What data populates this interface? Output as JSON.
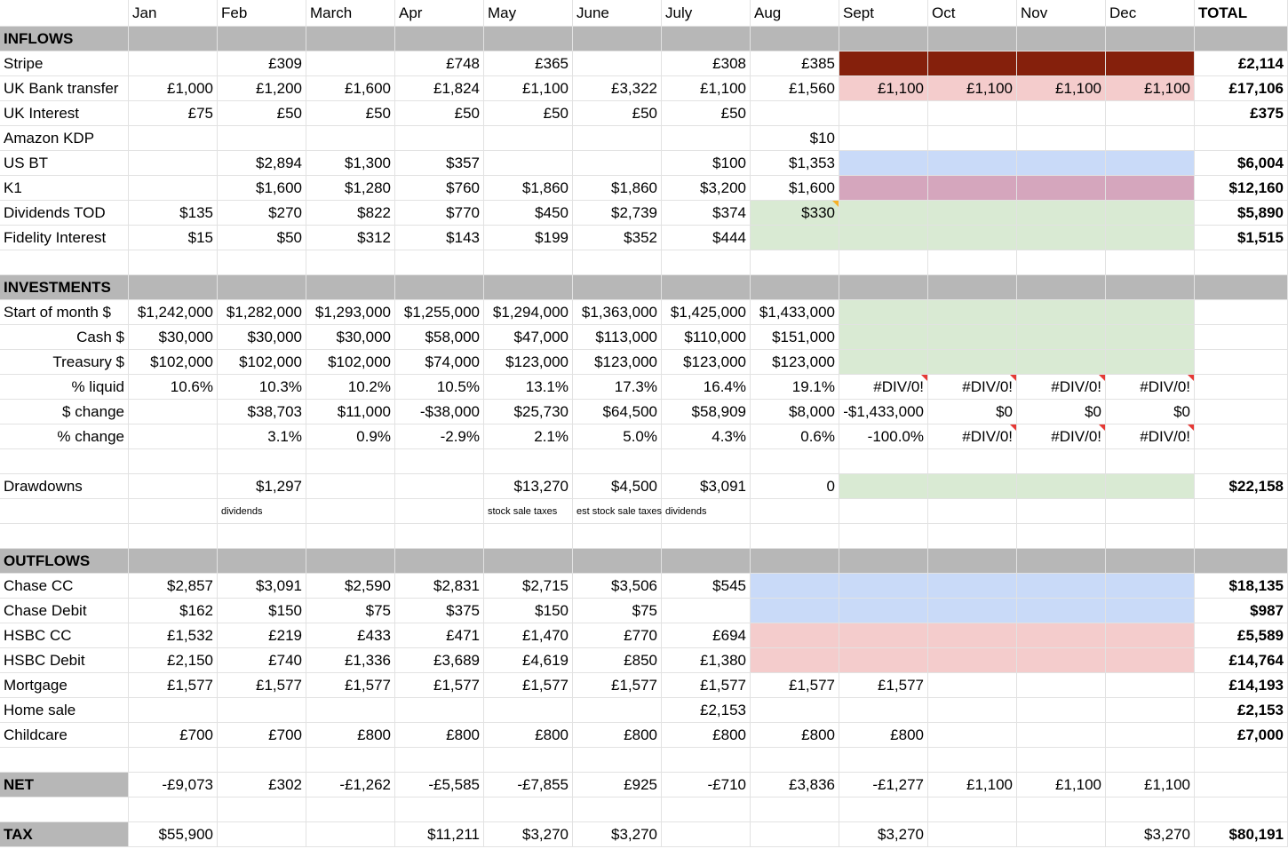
{
  "header": [
    null,
    "Jan",
    "Feb",
    "March",
    "Apr",
    "May",
    "June",
    "July",
    "Aug",
    "Sept",
    "Oct",
    "Nov",
    "Dec",
    "TOTAL"
  ],
  "rows": [
    [
      "INFLOWS",
      null,
      null,
      null,
      null,
      null,
      null,
      null,
      null,
      null,
      null,
      null,
      null,
      null
    ],
    [
      "Stripe",
      null,
      "£309",
      null,
      "£748",
      "£365",
      null,
      "£308",
      "£385",
      null,
      null,
      null,
      null,
      "£2,114"
    ],
    [
      "UK Bank transfer",
      "£1,000",
      "£1,200",
      "£1,600",
      "£1,824",
      "£1,100",
      "£3,322",
      "£1,100",
      "£1,560",
      "£1,100",
      "£1,100",
      "£1,100",
      "£1,100",
      "£17,106"
    ],
    [
      "UK Interest",
      "£75",
      "£50",
      "£50",
      "£50",
      "£50",
      "£50",
      "£50",
      null,
      null,
      null,
      null,
      null,
      "£375"
    ],
    [
      "Amazon KDP",
      null,
      null,
      null,
      null,
      null,
      null,
      null,
      "$10",
      null,
      null,
      null,
      null,
      null
    ],
    [
      "US BT",
      null,
      "$2,894",
      "$1,300",
      "$357",
      null,
      null,
      "$100",
      "$1,353",
      null,
      null,
      null,
      null,
      "$6,004"
    ],
    [
      "K1",
      null,
      "$1,600",
      "$1,280",
      "$760",
      "$1,860",
      "$1,860",
      "$3,200",
      "$1,600",
      null,
      null,
      null,
      null,
      "$12,160"
    ],
    [
      "Dividends TOD",
      "$135",
      "$270",
      "$822",
      "$770",
      "$450",
      "$2,739",
      "$374",
      "$330",
      null,
      null,
      null,
      null,
      "$5,890"
    ],
    [
      "Fidelity Interest",
      "$15",
      "$50",
      "$312",
      "$143",
      "$199",
      "$352",
      "$444",
      null,
      null,
      null,
      null,
      null,
      "$1,515"
    ],
    null,
    [
      "INVESTMENTS",
      null,
      null,
      null,
      null,
      null,
      null,
      null,
      null,
      null,
      null,
      null,
      null,
      null
    ],
    [
      "Start of month $",
      "$1,242,000",
      "$1,282,000",
      "$1,293,000",
      "$1,255,000",
      "$1,294,000",
      "$1,363,000",
      "$1,425,000",
      "$1,433,000",
      null,
      null,
      null,
      null,
      null
    ],
    [
      "Cash $",
      "$30,000",
      "$30,000",
      "$30,000",
      "$58,000",
      "$47,000",
      "$113,000",
      "$110,000",
      "$151,000",
      null,
      null,
      null,
      null,
      null
    ],
    [
      "Treasury $",
      "$102,000",
      "$102,000",
      "$102,000",
      "$74,000",
      "$123,000",
      "$123,000",
      "$123,000",
      "$123,000",
      null,
      null,
      null,
      null,
      null
    ],
    [
      "% liquid",
      "10.6%",
      "10.3%",
      "10.2%",
      "10.5%",
      "13.1%",
      "17.3%",
      "16.4%",
      "19.1%",
      "#DIV/0!",
      "#DIV/0!",
      "#DIV/0!",
      "#DIV/0!",
      null
    ],
    [
      "$ change",
      null,
      "$38,703",
      "$11,000",
      "-$38,000",
      "$25,730",
      "$64,500",
      "$58,909",
      "$8,000",
      "-$1,433,000",
      "$0",
      "$0",
      "$0",
      null
    ],
    [
      "% change",
      null,
      "3.1%",
      "0.9%",
      "-2.9%",
      "2.1%",
      "5.0%",
      "4.3%",
      "0.6%",
      "-100.0%",
      "#DIV/0!",
      "#DIV/0!",
      "#DIV/0!",
      null
    ],
    null,
    [
      "Drawdowns",
      null,
      "$1,297",
      null,
      null,
      "$13,270",
      "$4,500",
      "$3,091",
      "0",
      null,
      null,
      null,
      null,
      "$22,158"
    ],
    [
      null,
      null,
      "dividends",
      null,
      null,
      "stock sale taxes",
      "est stock sale taxes",
      "dividends",
      null,
      null,
      null,
      null,
      null,
      null
    ],
    null,
    [
      "OUTFLOWS",
      null,
      null,
      null,
      null,
      null,
      null,
      null,
      null,
      null,
      null,
      null,
      null,
      null
    ],
    [
      "Chase CC",
      "$2,857",
      "$3,091",
      "$2,590",
      "$2,831",
      "$2,715",
      "$3,506",
      "$545",
      null,
      null,
      null,
      null,
      null,
      "$18,135"
    ],
    [
      "Chase Debit",
      "$162",
      "$150",
      "$75",
      "$375",
      "$150",
      "$75",
      null,
      null,
      null,
      null,
      null,
      null,
      "$987"
    ],
    [
      "HSBC CC",
      "£1,532",
      "£219",
      "£433",
      "£471",
      "£1,470",
      "£770",
      "£694",
      null,
      null,
      null,
      null,
      null,
      "£5,589"
    ],
    [
      "HSBC Debit",
      "£2,150",
      "£740",
      "£1,336",
      "£3,689",
      "£4,619",
      "£850",
      "£1,380",
      null,
      null,
      null,
      null,
      null,
      "£14,764"
    ],
    [
      "Mortgage",
      "£1,577",
      "£1,577",
      "£1,577",
      "£1,577",
      "£1,577",
      "£1,577",
      "£1,577",
      "£1,577",
      "£1,577",
      null,
      null,
      null,
      "£14,193"
    ],
    [
      "Home sale",
      null,
      null,
      null,
      null,
      null,
      null,
      "£2,153",
      null,
      null,
      null,
      null,
      null,
      "£2,153"
    ],
    [
      "Childcare",
      "£700",
      "£700",
      "£800",
      "£800",
      "£800",
      "£800",
      "£800",
      "£800",
      "£800",
      null,
      null,
      null,
      "£7,000"
    ],
    null,
    [
      "NET",
      "-£9,073",
      "£302",
      "-£1,262",
      "-£5,585",
      "-£7,855",
      "£925",
      "-£710",
      "£3,836",
      "-£1,277",
      "£1,100",
      "£1,100",
      "£1,100",
      null
    ],
    null,
    [
      "TAX",
      "$55,900",
      null,
      null,
      "$11,211",
      "$3,270",
      "$3,270",
      null,
      null,
      "$3,270",
      null,
      null,
      "$3,270",
      "$80,191"
    ]
  ]
}
